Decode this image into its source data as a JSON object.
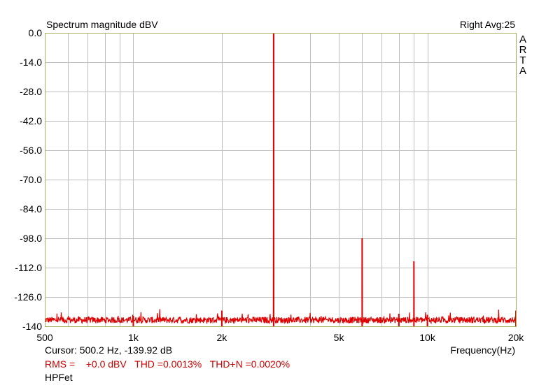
{
  "chart_data": {
    "type": "line",
    "title": "Spectrum magnitude dBV",
    "top_right_label": "Right  Avg:25",
    "brand_letters": [
      "A",
      "R",
      "T",
      "A"
    ],
    "xlabel": "Frequency(Hz)",
    "x_scale": "log",
    "xlim": [
      500,
      20000
    ],
    "ylim": [
      -140,
      0
    ],
    "yticks": [
      0,
      -14,
      -28,
      -42,
      -56,
      -70,
      -84,
      -98,
      -112,
      -126,
      -140
    ],
    "ytick_labels": [
      "0.0",
      "-14.0",
      "-28.0",
      "-42.0",
      "-56.0",
      "-70.0",
      "-84.0",
      "-98.0",
      "-112.0",
      "-126.0",
      "-140"
    ],
    "xtick_labels": [
      {
        "value": 500,
        "label": "500"
      },
      {
        "value": 1000,
        "label": "1k"
      },
      {
        "value": 2000,
        "label": "2k"
      },
      {
        "value": 5000,
        "label": "5k"
      },
      {
        "value": 10000,
        "label": "10k"
      },
      {
        "value": 20000,
        "label": "20k"
      }
    ],
    "grid": true,
    "grid_x": [
      600,
      700,
      800,
      900,
      1000,
      2000,
      3000,
      4000,
      5000,
      6000,
      7000,
      8000,
      9000,
      10000,
      20000
    ],
    "noise_floor_db": -137,
    "peaks": [
      {
        "freq": 1000,
        "db": -135
      },
      {
        "freq": 2000,
        "db": -132.5
      },
      {
        "freq": 3000,
        "db": 0
      },
      {
        "freq": 6000,
        "db": -98
      },
      {
        "freq": 8000,
        "db": -134
      },
      {
        "freq": 9000,
        "db": -109
      },
      {
        "freq": 10000,
        "db": -134.5
      },
      {
        "freq": 20000,
        "db": -132.5
      }
    ],
    "series_color": "#e00000",
    "grid_color": "#c0c0c0",
    "axis_color": "#a8b060"
  },
  "footer": {
    "cursor": "Cursor:   500.2 Hz, -139.92 dB",
    "measurements": "RMS =    +0.0 dBV   THD =0.0013%   THD+N =0.0020%",
    "device": "HPFet"
  }
}
